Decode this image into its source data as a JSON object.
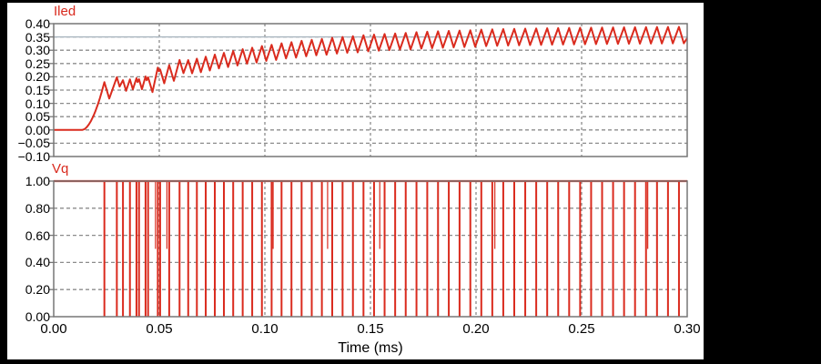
{
  "window": {
    "background_outer": "#000000",
    "background_inner": "#ffffff"
  },
  "colors": {
    "trace": "#da2b1e",
    "grid": "#8c8c8c",
    "border": "#767676",
    "reference_line": "#a9b6c0",
    "tick_text": "#000000",
    "title_text": "#d92a1e"
  },
  "xlabel": "Time (ms)",
  "chart_data": [
    {
      "type": "line",
      "title": "Iled",
      "xlim": [
        0.0,
        0.3
      ],
      "ylim": [
        -0.1,
        0.4
      ],
      "grid": true,
      "yticks": [
        "0.40",
        "0.35",
        "0.30",
        "0.25",
        "0.20",
        "0.15",
        "0.10",
        "0.05",
        "0.00",
        "−0.05",
        "−0.10"
      ],
      "ytick_values": [
        0.4,
        0.35,
        0.3,
        0.25,
        0.2,
        0.15,
        0.1,
        0.05,
        0.0,
        -0.05,
        -0.1
      ],
      "gridline_x_values": [
        0.05,
        0.1,
        0.15,
        0.2,
        0.25
      ],
      "reference_line_value": 0.35,
      "waveform": {
        "kind": "startup-sawtooth",
        "flat_level": 0.0,
        "flat_until_ms": 0.0135,
        "rise_end_ms": 0.024,
        "first_peak": 0.18,
        "steady_peak": 0.392,
        "steady_valley": 0.33,
        "envelope_tau_ms": 0.065,
        "ripple": 0.062,
        "rise_exponent": 1.8,
        "fall_time_ms": 0.0023,
        "rise_time_ms": 0.0029,
        "switch_events_from": "Vq"
      }
    },
    {
      "type": "line",
      "title": "Vq",
      "xlim": [
        0.0,
        0.3
      ],
      "ylim": [
        0.0,
        1.0
      ],
      "grid": true,
      "yticks": [
        "1.00",
        "0.80",
        "0.60",
        "0.40",
        "0.20",
        "0.00"
      ],
      "ytick_values": [
        1.0,
        0.8,
        0.6,
        0.4,
        0.2,
        0.0
      ],
      "gridline_x_values": [
        0.05,
        0.1,
        0.15,
        0.2,
        0.25
      ],
      "xticks": [
        "0.00",
        "0.05",
        "0.10",
        "0.15",
        "0.20",
        "0.25",
        "0.30"
      ],
      "xtick_values": [
        0.0,
        0.05,
        0.1,
        0.15,
        0.2,
        0.25,
        0.3
      ],
      "high_level": 1.0,
      "low_level": 0.0,
      "pulse_times_ms": [
        0.024,
        0.0299,
        0.0328,
        0.0361,
        0.0392,
        0.0404,
        0.0435,
        0.0447,
        0.0493,
        0.0504,
        0.0547,
        0.0596,
        0.0637,
        0.0678,
        0.072,
        0.0763,
        0.0806,
        0.085,
        0.0895,
        0.094,
        0.0986,
        0.1032,
        0.1079,
        0.1126,
        0.1174,
        0.1222,
        0.127,
        0.1319,
        0.1368,
        0.1417,
        0.1467,
        0.1517,
        0.1567,
        0.1617,
        0.1667,
        0.1718,
        0.1769,
        0.182,
        0.1871,
        0.1922,
        0.1973,
        0.2025,
        0.2077,
        0.2129,
        0.2181,
        0.2233,
        0.2285,
        0.2337,
        0.2389,
        0.2441,
        0.2493,
        0.2545,
        0.2597,
        0.2649,
        0.2701,
        0.2753,
        0.2805,
        0.2857,
        0.2909,
        0.2961
      ],
      "half_spike_times_ms": [
        0.0489,
        0.0543,
        0.1046,
        0.1304,
        0.1551,
        0.2096,
        0.282
      ],
      "half_spike_level": 0.5
    }
  ]
}
